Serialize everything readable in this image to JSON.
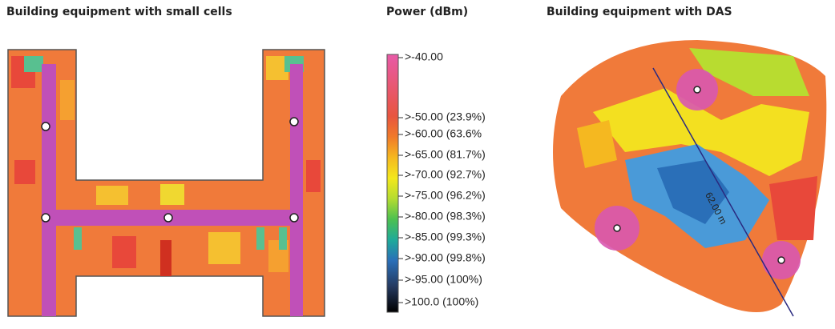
{
  "panels": {
    "small_cells": {
      "title": "Building equipment with small cells"
    },
    "legend": {
      "title": "Power (dBm)",
      "items": [
        ">-40.00",
        ">-50.00 (23.9%)",
        ">-60.00 (63.6%",
        ">-65.00 (81.7%)",
        ">-70.00 (92.7%)",
        ">-75.00 (96.2%)",
        ">-80.00 (98.3%)",
        ">-85.00 (99.3%)",
        ">-90.00 (99.8%)",
        ">-95.00 (100%)",
        ">100.0 (100%)"
      ]
    },
    "das": {
      "title": "Building equipment with DAS",
      "scale_label": "62.00 m"
    }
  }
}
